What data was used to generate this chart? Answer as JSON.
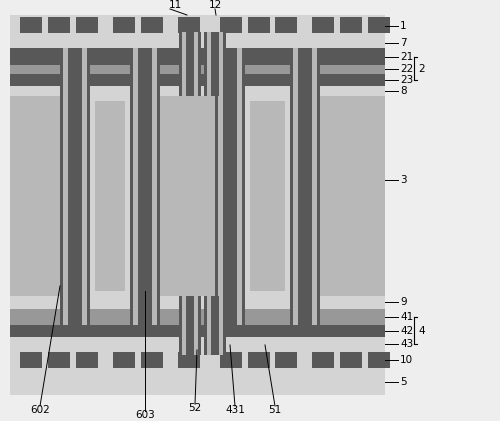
{
  "fig_width": 5.0,
  "fig_height": 4.21,
  "dpi": 100,
  "bg_color": "#eeeeee",
  "colors": {
    "light_gray": "#b8b8b8",
    "medium_gray": "#989898",
    "dark_gray": "#585858",
    "very_light_gray": "#d4d4d4",
    "white_ish": "#c8c8c8",
    "bg": "#eeeeee"
  }
}
